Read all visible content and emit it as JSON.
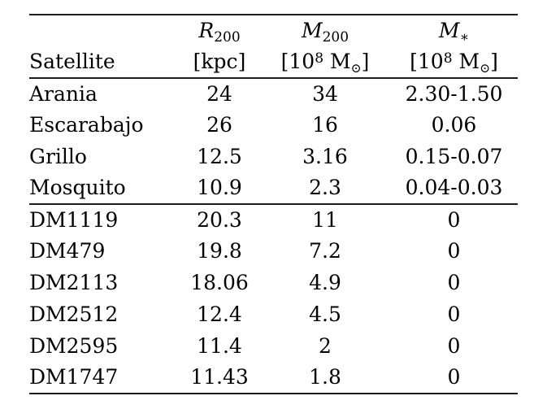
{
  "page": {
    "background_color": "#ffffff",
    "text_color": "#000000",
    "rule_color": "#1c1c1c"
  },
  "table": {
    "header": {
      "satellite_label": "Satellite",
      "r200": {
        "base": "R",
        "sub": "200",
        "unit": "[kpc]"
      },
      "m200": {
        "base": "M",
        "sub": "200",
        "unit_open": "[10",
        "unit_exp": "8",
        "unit_body": " M",
        "unit_sun": "⊙",
        "unit_close": "]"
      },
      "mstar": {
        "base": "M",
        "sub": "∗",
        "unit_open": "[10",
        "unit_exp": "8",
        "unit_body": " M",
        "unit_sun": "⊙",
        "unit_close": "]"
      }
    },
    "rows": [
      {
        "name": "Arania",
        "r200": "24",
        "m200": "34",
        "mstar": "2.30-1.50"
      },
      {
        "name": "Escarabajo",
        "r200": "26",
        "m200": "16",
        "mstar": "0.06"
      },
      {
        "name": "Grillo",
        "r200": "12.5",
        "m200": "3.16",
        "mstar": "0.15-0.07"
      },
      {
        "name": "Mosquito",
        "r200": "10.9",
        "m200": "2.3",
        "mstar": "0.04-0.03"
      },
      {
        "name": "DM1119",
        "r200": "20.3",
        "m200": "11",
        "mstar": "0"
      },
      {
        "name": "DM479",
        "r200": "19.8",
        "m200": "7.2",
        "mstar": "0"
      },
      {
        "name": "DM2113",
        "r200": "18.06",
        "m200": "4.9",
        "mstar": "0"
      },
      {
        "name": "DM2512",
        "r200": "12.4",
        "m200": "4.5",
        "mstar": "0"
      },
      {
        "name": "DM2595",
        "r200": "11.4",
        "m200": "2",
        "mstar": "0"
      },
      {
        "name": "DM1747",
        "r200": "11.43",
        "m200": "1.8",
        "mstar": "0"
      }
    ]
  }
}
